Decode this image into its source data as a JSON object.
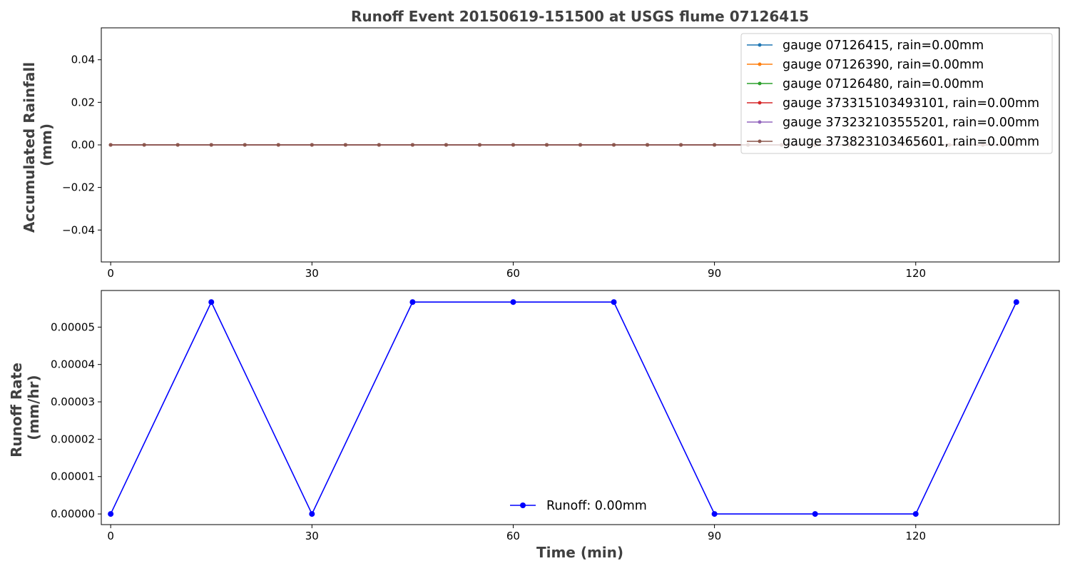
{
  "chart_data": [
    {
      "type": "line",
      "title": "Runoff Event 20150619-151500 at USGS flume 07126415",
      "xlabel": "",
      "ylabel": "Accumulated Rainfall (mm)",
      "ylabel_lines": [
        "Accumulated Rainfall",
        "(mm)"
      ],
      "xlim": [
        -1.4,
        141.4
      ],
      "ylim": [
        -0.055,
        0.055
      ],
      "x_ticks": [
        0,
        30,
        60,
        90,
        120
      ],
      "x_tick_labels": [
        "0",
        "30",
        "60",
        "90",
        "120"
      ],
      "y_ticks": [
        -0.04,
        -0.02,
        0.0,
        0.02,
        0.04
      ],
      "y_tick_labels": [
        "−0.04",
        "−0.02",
        "0.00",
        "0.02",
        "0.04"
      ],
      "grid": false,
      "legend_position": "top-right",
      "x": [
        0,
        5,
        10,
        15,
        20,
        25,
        30,
        35,
        40,
        45,
        50,
        55,
        60,
        65,
        70,
        75,
        80,
        85,
        90,
        95,
        100,
        105,
        110,
        115,
        120,
        125,
        130,
        135
      ],
      "series": [
        {
          "name": "gauge 07126415, rain=0.00mm",
          "color": "#1f77b4",
          "values": [
            0,
            0,
            0,
            0,
            0,
            0,
            0,
            0,
            0,
            0,
            0,
            0,
            0,
            0,
            0,
            0,
            0,
            0,
            0,
            0,
            0,
            0,
            0,
            0,
            0,
            0,
            0,
            0
          ]
        },
        {
          "name": "gauge 07126390, rain=0.00mm",
          "color": "#ff7f0e",
          "values": [
            0,
            0,
            0,
            0,
            0,
            0,
            0,
            0,
            0,
            0,
            0,
            0,
            0,
            0,
            0,
            0,
            0,
            0,
            0,
            0,
            0,
            0,
            0,
            0,
            0,
            0,
            0,
            0
          ]
        },
        {
          "name": "gauge 07126480, rain=0.00mm",
          "color": "#2ca02c",
          "values": [
            0,
            0,
            0,
            0,
            0,
            0,
            0,
            0,
            0,
            0,
            0,
            0,
            0,
            0,
            0,
            0,
            0,
            0,
            0,
            0,
            0,
            0,
            0,
            0,
            0,
            0,
            0,
            0
          ]
        },
        {
          "name": "gauge 373315103493101, rain=0.00mm",
          "color": "#d62728",
          "values": [
            0,
            0,
            0,
            0,
            0,
            0,
            0,
            0,
            0,
            0,
            0,
            0,
            0,
            0,
            0,
            0,
            0,
            0,
            0,
            0,
            0,
            0,
            0,
            0,
            0,
            0,
            0,
            0
          ]
        },
        {
          "name": "gauge 373232103555201, rain=0.00mm",
          "color": "#9467bd",
          "values": [
            0,
            0,
            0,
            0,
            0,
            0,
            0,
            0,
            0,
            0,
            0,
            0,
            0,
            0,
            0,
            0,
            0,
            0,
            0,
            0,
            0,
            0,
            0,
            0,
            0,
            0,
            0,
            0
          ]
        },
        {
          "name": "gauge 373823103465601, rain=0.00mm",
          "color": "#8c564b",
          "values": [
            0,
            0,
            0,
            0,
            0,
            0,
            0,
            0,
            0,
            0,
            0,
            0,
            0,
            0,
            0,
            0,
            0,
            0,
            0,
            0,
            0,
            0,
            0,
            0,
            0,
            0,
            0,
            0
          ]
        }
      ]
    },
    {
      "type": "line",
      "title": "",
      "xlabel": "Time (min)",
      "ylabel": "Runoff Rate (mm/hr)",
      "ylabel_lines": [
        "Runoff Rate",
        "(mm/hr)"
      ],
      "xlim": [
        -1.4,
        141.4
      ],
      "ylim": [
        -2.85e-06,
        5.98e-05
      ],
      "x_ticks": [
        0,
        30,
        60,
        90,
        120
      ],
      "x_tick_labels": [
        "0",
        "30",
        "60",
        "90",
        "120"
      ],
      "y_ticks": [
        0,
        1e-05,
        2e-05,
        3e-05,
        4e-05,
        5e-05
      ],
      "y_tick_labels": [
        "0.00000",
        "0.00001",
        "0.00002",
        "0.00003",
        "0.00004",
        "0.00005"
      ],
      "grid": false,
      "legend_position": "lower-center",
      "x": [
        0,
        15,
        30,
        45,
        60,
        75,
        90,
        105,
        120,
        135
      ],
      "series": [
        {
          "name": "Runoff: 0.00mm",
          "color": "#0000ff",
          "values": [
            0,
            5.67e-05,
            0,
            5.67e-05,
            5.67e-05,
            5.67e-05,
            0,
            0,
            0,
            5.67e-05
          ]
        }
      ]
    }
  ]
}
